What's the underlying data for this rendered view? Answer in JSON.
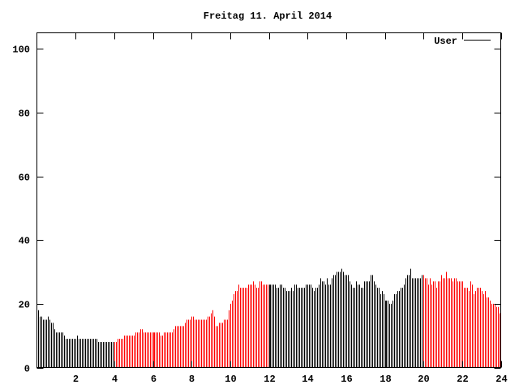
{
  "chart_data": {
    "type": "bar",
    "style": "impulses",
    "title": "Freitag 11. April 2014",
    "xlabel": "",
    "ylabel": "",
    "xlim": [
      0,
      24
    ],
    "ylim": [
      0,
      105
    ],
    "x_ticks": [
      "2",
      "4",
      "6",
      "8",
      "10",
      "12",
      "14",
      "16",
      "18",
      "20",
      "22",
      "24"
    ],
    "y_ticks": [
      "0",
      "20",
      "40",
      "60",
      "80",
      "100"
    ],
    "grid": false,
    "legend": {
      "position": "top-right",
      "entries": [
        {
          "label": "User",
          "color": "#000000"
        }
      ]
    },
    "sample_interval_minutes": 5,
    "default_color": "#000000",
    "highlight_ranges": [
      {
        "from": 4,
        "to": 12,
        "color": "#ff0000"
      },
      {
        "from": 20,
        "to": 24,
        "color": "#ff0000"
      }
    ],
    "series": [
      {
        "name": "User",
        "values": [
          18,
          16,
          16,
          15,
          15,
          15,
          16,
          15,
          14,
          14,
          12,
          11,
          11,
          11,
          11,
          11,
          10,
          9,
          9,
          9,
          9,
          9,
          9,
          9,
          10,
          9,
          9,
          9,
          9,
          9,
          9,
          9,
          9,
          9,
          9,
          9,
          9,
          8,
          8,
          8,
          8,
          8,
          8,
          8,
          8,
          8,
          8,
          8,
          8,
          9,
          9,
          9,
          9,
          10,
          10,
          10,
          10,
          10,
          10,
          10,
          11,
          11,
          11,
          12,
          12,
          11,
          11,
          11,
          11,
          11,
          11,
          11,
          11,
          11,
          11,
          11,
          10,
          10,
          11,
          11,
          11,
          11,
          11,
          11,
          12,
          13,
          13,
          13,
          13,
          13,
          13,
          14,
          15,
          15,
          15,
          16,
          16,
          15,
          15,
          15,
          15,
          15,
          15,
          15,
          15,
          16,
          16,
          17,
          18,
          16,
          13,
          13,
          14,
          14,
          14,
          15,
          15,
          15,
          18,
          20,
          21,
          23,
          24,
          24,
          26,
          25,
          25,
          25,
          25,
          25,
          26,
          26,
          26,
          27,
          26,
          25,
          25,
          27,
          27,
          26,
          26,
          26,
          26,
          26,
          26,
          26,
          26,
          26,
          25,
          25,
          26,
          26,
          25,
          25,
          24,
          24,
          24,
          25,
          24,
          26,
          26,
          25,
          25,
          25,
          25,
          25,
          26,
          26,
          26,
          26,
          25,
          24,
          25,
          25,
          26,
          28,
          27,
          27,
          26,
          28,
          26,
          26,
          28,
          29,
          29,
          30,
          30,
          30,
          31,
          30,
          29,
          29,
          29,
          27,
          26,
          25,
          25,
          27,
          26,
          26,
          25,
          25,
          27,
          27,
          27,
          27,
          29,
          29,
          27,
          26,
          25,
          25,
          23,
          24,
          23,
          21,
          21,
          21,
          20,
          20,
          21,
          23,
          23,
          24,
          24,
          25,
          25,
          26,
          28,
          29,
          29,
          31,
          28,
          28,
          28,
          28,
          28,
          28,
          29,
          29,
          28,
          28,
          26,
          28,
          26,
          27,
          27,
          25,
          27,
          27,
          29,
          28,
          28,
          30,
          28,
          28,
          28,
          27,
          28,
          28,
          27,
          27,
          27,
          27,
          25,
          25,
          25,
          24,
          27,
          26,
          23,
          24,
          25,
          25,
          25,
          24,
          23,
          24,
          22,
          22,
          21,
          20,
          20,
          20,
          19,
          19,
          17
        ]
      }
    ]
  }
}
